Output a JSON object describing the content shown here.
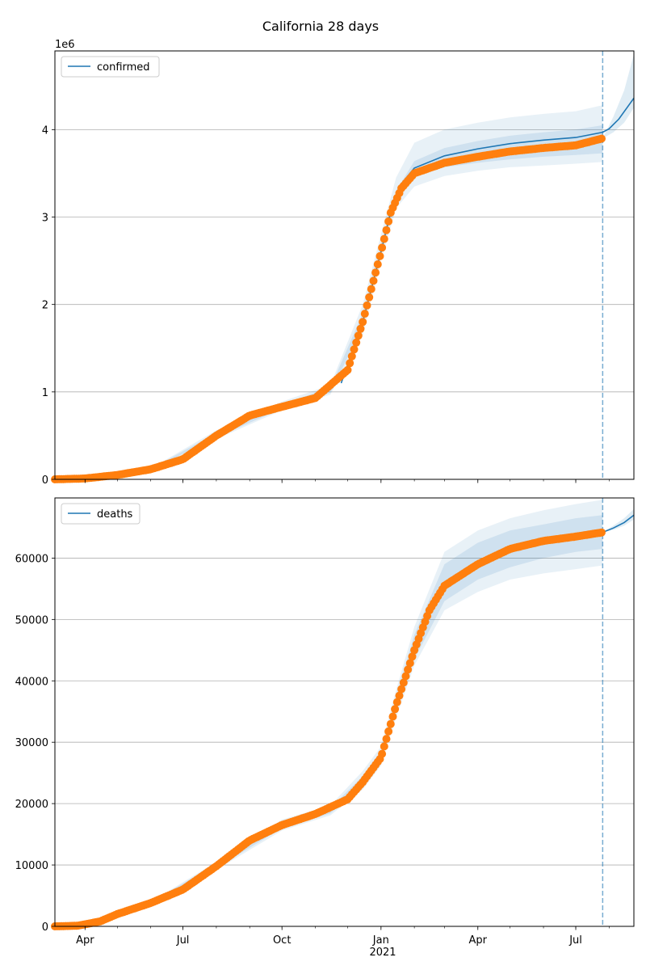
{
  "title": "California 28 days",
  "colors": {
    "model": "#1f77b4",
    "observed": "#ff7f0e",
    "band": "#1f77b4",
    "grid": "#b0b0b0",
    "cutoff": "#1f77b4"
  },
  "x_axis": {
    "ticks": [
      {
        "date": "2020-04-01",
        "label": "Apr"
      },
      {
        "date": "2020-07-01",
        "label": "Jul"
      },
      {
        "date": "2020-10-01",
        "label": "Oct"
      },
      {
        "date": "2021-01-01",
        "label": "Jan"
      },
      {
        "date": "2021-04-01",
        "label": "Apr"
      },
      {
        "date": "2021-07-01",
        "label": "Jul"
      }
    ],
    "year_label": "2021",
    "range": [
      "2020-03-04",
      "2021-08-24"
    ],
    "cutoff_date": "2021-07-26"
  },
  "chart_data": [
    {
      "type": "line",
      "legend": "confirmed",
      "legend_position": "upper-left",
      "grid": "y",
      "offset_label": "1e6",
      "ylim": [
        0,
        4900000
      ],
      "yticks": [
        0,
        1000000,
        2000000,
        3000000,
        4000000
      ],
      "ytick_labels": [
        "0",
        "1",
        "2",
        "3",
        "4"
      ],
      "observed": {
        "dates": [
          "2020-03-04",
          "2020-04-01",
          "2020-05-01",
          "2020-06-01",
          "2020-07-01",
          "2020-08-01",
          "2020-09-01",
          "2020-10-01",
          "2020-11-01",
          "2020-12-01",
          "2020-12-15",
          "2021-01-01",
          "2021-01-10",
          "2021-01-20",
          "2021-02-01",
          "2021-03-01",
          "2021-04-01",
          "2021-05-01",
          "2021-06-01",
          "2021-07-01",
          "2021-07-26"
        ],
        "values": [
          0,
          10000,
          50000,
          115000,
          230000,
          500000,
          730000,
          830000,
          930000,
          1250000,
          1800000,
          2600000,
          3050000,
          3330000,
          3500000,
          3620000,
          3690000,
          3750000,
          3790000,
          3820000,
          3900000
        ]
      },
      "model": {
        "dates": [
          "2020-11-25",
          "2020-12-15",
          "2021-01-01",
          "2021-01-10",
          "2021-01-20",
          "2021-02-01",
          "2021-03-01",
          "2021-04-01",
          "2021-05-01",
          "2021-06-01",
          "2021-07-01",
          "2021-07-26",
          "2021-08-01",
          "2021-08-10",
          "2021-08-24"
        ],
        "values": [
          1100000,
          1800000,
          2600000,
          3060000,
          3380000,
          3560000,
          3700000,
          3780000,
          3840000,
          3880000,
          3910000,
          3970000,
          4010000,
          4120000,
          4360000
        ]
      },
      "bands": {
        "dates": [
          "2020-06-01",
          "2020-08-01",
          "2020-10-01",
          "2020-11-15",
          "2020-12-15",
          "2021-01-01",
          "2021-01-15",
          "2021-02-01",
          "2021-03-01",
          "2021-04-01",
          "2021-05-01",
          "2021-06-01",
          "2021-07-01",
          "2021-07-26"
        ],
        "lower_inner": [
          110000,
          480000,
          810000,
          990000,
          1750000,
          2580000,
          3200000,
          3460000,
          3570000,
          3620000,
          3660000,
          3690000,
          3710000,
          3730000
        ],
        "upper_inner": [
          120000,
          530000,
          860000,
          1050000,
          1900000,
          2700000,
          3300000,
          3640000,
          3790000,
          3870000,
          3930000,
          3970000,
          4000000,
          4050000
        ],
        "lower_outer": [
          105000,
          460000,
          790000,
          970000,
          1650000,
          2500000,
          3100000,
          3350000,
          3470000,
          3530000,
          3570000,
          3590000,
          3610000,
          3630000
        ],
        "upper_outer": [
          125000,
          560000,
          890000,
          1080000,
          2000000,
          2800000,
          3450000,
          3850000,
          4000000,
          4080000,
          4140000,
          4180000,
          4210000,
          4280000
        ]
      },
      "forecast_band": {
        "dates": [
          "2021-07-26",
          "2021-08-05",
          "2021-08-15",
          "2021-08-24"
        ],
        "lower": [
          3900000,
          3970000,
          4080000,
          4250000
        ],
        "upper": [
          3900000,
          4150000,
          4450000,
          4860000
        ]
      }
    },
    {
      "type": "line",
      "legend": "deaths",
      "legend_position": "upper-left",
      "grid": "y",
      "ylim": [
        0,
        69800
      ],
      "yticks": [
        0,
        10000,
        20000,
        30000,
        40000,
        50000,
        60000
      ],
      "ytick_labels": [
        "0",
        "10000",
        "20000",
        "30000",
        "40000",
        "50000",
        "60000"
      ],
      "observed": {
        "dates": [
          "2020-03-04",
          "2020-03-25",
          "2020-04-15",
          "2020-05-01",
          "2020-06-01",
          "2020-07-01",
          "2020-08-01",
          "2020-09-01",
          "2020-10-01",
          "2020-11-01",
          "2020-12-01",
          "2020-12-15",
          "2021-01-01",
          "2021-01-15",
          "2021-02-01",
          "2021-02-15",
          "2021-03-01",
          "2021-04-01",
          "2021-05-01",
          "2021-06-01",
          "2021-07-01",
          "2021-07-26"
        ],
        "values": [
          0,
          100,
          800,
          2000,
          3800,
          6000,
          9800,
          14000,
          16500,
          18300,
          20700,
          23500,
          27500,
          36000,
          45000,
          51500,
          55500,
          59000,
          61500,
          62800,
          63500,
          64200
        ]
      },
      "model": {
        "dates": [
          "2021-07-26",
          "2021-08-05",
          "2021-08-15",
          "2021-08-24"
        ],
        "values": [
          64200,
          64900,
          65800,
          67000
        ]
      },
      "bands": {
        "dates": [
          "2020-06-01",
          "2020-08-01",
          "2020-10-01",
          "2020-11-15",
          "2020-12-15",
          "2021-01-01",
          "2021-01-15",
          "2021-02-01",
          "2021-03-01",
          "2021-04-01",
          "2021-05-01",
          "2021-06-01",
          "2021-07-01",
          "2021-07-26"
        ],
        "lower_inner": [
          3700,
          9500,
          16000,
          18400,
          22800,
          26800,
          34800,
          43500,
          53000,
          56500,
          58500,
          60000,
          61000,
          61500
        ],
        "upper_inner": [
          3900,
          10200,
          17000,
          19300,
          24500,
          28500,
          37500,
          47500,
          59000,
          62500,
          64500,
          65500,
          66500,
          67000
        ],
        "lower_outer": [
          3600,
          9200,
          15600,
          18100,
          22300,
          26200,
          34000,
          42500,
          51500,
          54500,
          56500,
          57500,
          58200,
          58800
        ],
        "upper_outer": [
          4000,
          10500,
          17400,
          19700,
          25300,
          29300,
          38500,
          48800,
          61000,
          64500,
          66500,
          67800,
          68800,
          69500
        ]
      },
      "forecast_band": {
        "dates": [
          "2021-07-26",
          "2021-08-05",
          "2021-08-15",
          "2021-08-24"
        ],
        "lower": [
          64200,
          64600,
          65300,
          66300
        ],
        "upper": [
          64200,
          65300,
          66500,
          68000
        ]
      }
    }
  ]
}
